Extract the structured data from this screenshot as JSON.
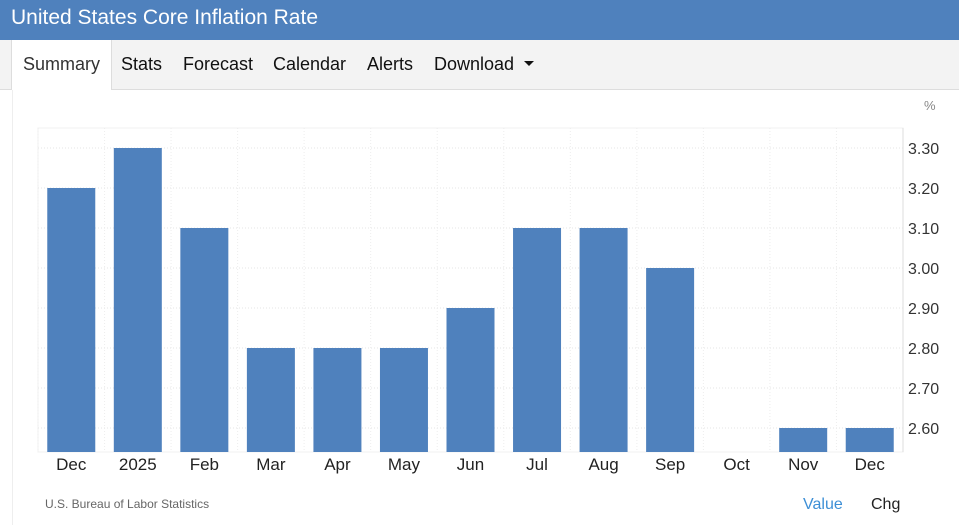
{
  "header": {
    "title": "United States Core Inflation Rate"
  },
  "tabs": [
    {
      "label": "Summary",
      "active": true
    },
    {
      "label": "Stats"
    },
    {
      "label": "Forecast"
    },
    {
      "label": "Calendar"
    },
    {
      "label": "Alerts"
    },
    {
      "label": "Download"
    }
  ],
  "colors": {
    "header_bg": "#4f81bd",
    "bar": "#4f81bd",
    "link": "#3d8fd6"
  },
  "footer": {
    "source": "U.S. Bureau of Labor Statistics",
    "value_toggle": "Value",
    "chg_toggle": "Chg"
  },
  "chart_data": {
    "type": "bar",
    "title": "",
    "unit_label": "%",
    "categories": [
      "Dec",
      "2025",
      "Feb",
      "Mar",
      "Apr",
      "May",
      "Jun",
      "Jul",
      "Aug",
      "Sep",
      "Oct",
      "Nov",
      "Dec"
    ],
    "values": [
      3.2,
      3.3,
      3.1,
      2.8,
      2.8,
      2.8,
      2.9,
      3.1,
      3.1,
      3.0,
      null,
      2.6,
      2.6
    ],
    "yticks": [
      "3.30",
      "3.20",
      "3.10",
      "3.00",
      "2.90",
      "2.80",
      "2.70",
      "2.60"
    ],
    "ylim": [
      2.54,
      3.35
    ],
    "y_axis_side": "right",
    "grid": true
  }
}
